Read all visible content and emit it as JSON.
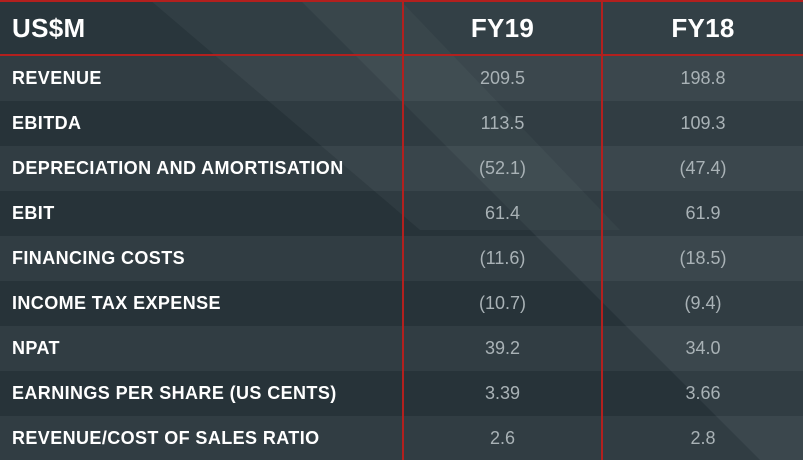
{
  "table": {
    "header": {
      "label": "US$M",
      "years": [
        "FY19",
        "FY18"
      ]
    },
    "rows": [
      {
        "label": "REVENUE",
        "fy19": "209.5",
        "fy18": "198.8"
      },
      {
        "label": "EBITDA",
        "fy19": "113.5",
        "fy18": "109.3"
      },
      {
        "label": "DEPRECIATION AND AMORTISATION",
        "fy19": "(52.1)",
        "fy18": "(47.4)"
      },
      {
        "label": "EBIT",
        "fy19": "61.4",
        "fy18": "61.9"
      },
      {
        "label": "FINANCING COSTS",
        "fy19": "(11.6)",
        "fy18": "(18.5)"
      },
      {
        "label": "INCOME TAX EXPENSE",
        "fy19": "(10.7)",
        "fy18": "(9.4)"
      },
      {
        "label": "NPAT",
        "fy19": "39.2",
        "fy18": "34.0"
      },
      {
        "label": "EARNINGS PER SHARE (US CENTS)",
        "fy19": "3.39",
        "fy18": "3.66"
      },
      {
        "label": "REVENUE/COST OF SALES RATIO",
        "fy19": "2.6",
        "fy18": "2.8"
      }
    ]
  },
  "colors": {
    "background": "#2c393e",
    "rule": "#b3201e",
    "label_text": "#ffffff",
    "value_text": "#a9b2b6"
  }
}
